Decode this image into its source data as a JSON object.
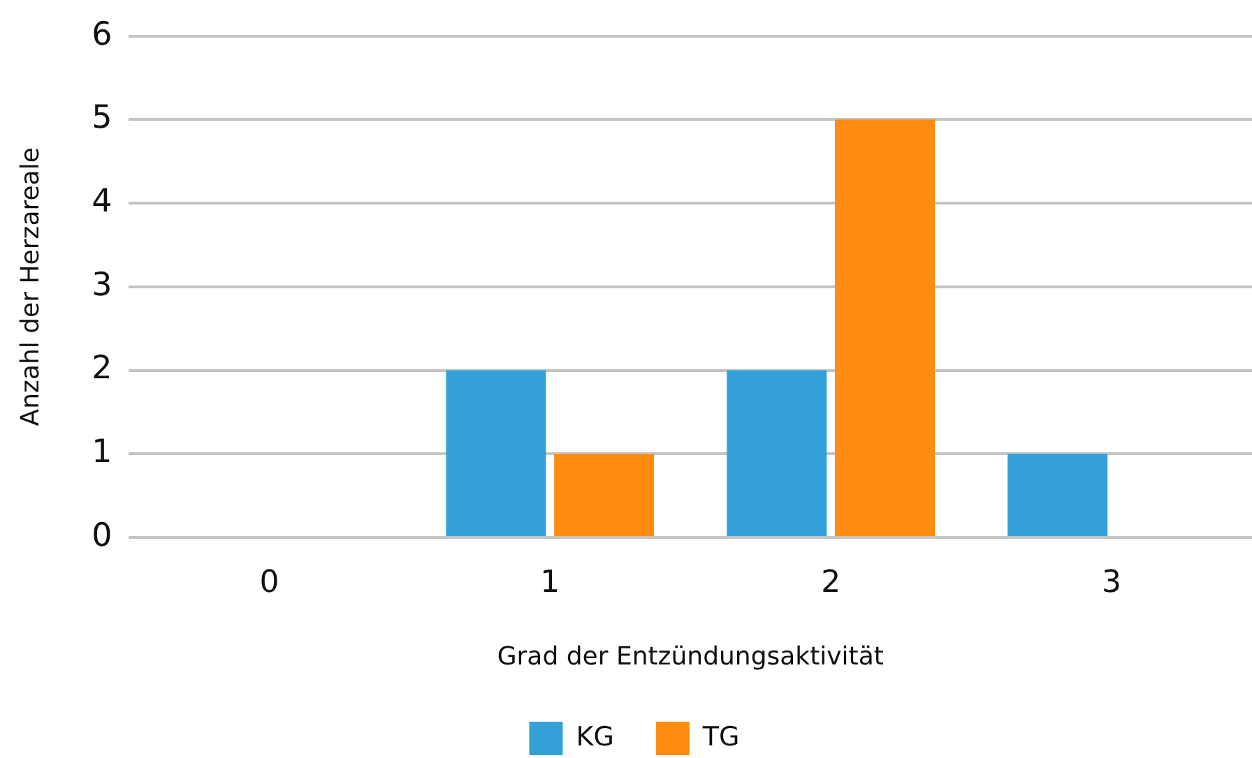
{
  "chart_data": {
    "type": "bar",
    "xlabel": "Grad der Entzündungsaktivität",
    "ylabel": "Anzahl der Herzareale",
    "categories": [
      "0",
      "1",
      "2",
      "3"
    ],
    "series": [
      {
        "name": "KG",
        "color": "#34a0da",
        "values": [
          0,
          2,
          2,
          1
        ]
      },
      {
        "name": "TG",
        "color": "#ff8c10",
        "values": [
          0,
          1,
          5,
          0
        ]
      }
    ],
    "ylim": [
      0,
      6
    ],
    "yticks": [
      0,
      1,
      2,
      3,
      4,
      5,
      6
    ],
    "grid": "y",
    "legend": "bottom"
  }
}
